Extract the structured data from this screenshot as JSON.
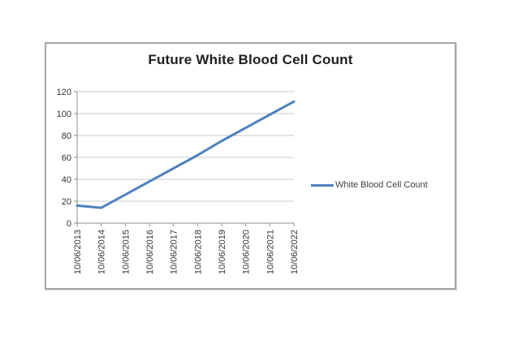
{
  "chart_data": {
    "type": "line",
    "title": "Future White Blood Cell Count",
    "categories": [
      "10/06/2013",
      "10/06/2014",
      "10/06/2015",
      "10/06/2016",
      "10/06/2017",
      "10/06/2018",
      "10/06/2019",
      "10/06/2020",
      "10/06/2021",
      "10/06/2022"
    ],
    "series": [
      {
        "name": "White Blood Cell Count",
        "values": [
          16,
          14,
          26,
          38,
          50,
          62,
          75,
          87,
          99,
          111
        ],
        "color": "#4F81BD"
      }
    ],
    "xlabel": "",
    "ylabel": "",
    "ylim": [
      0,
      120
    ],
    "ytick_labels": [
      "0",
      "20",
      "40",
      "60",
      "80",
      "100",
      "120"
    ],
    "grid": true,
    "legend_position": "right",
    "x_label_rotation": -90
  },
  "colors": {
    "line": "#4F81BD",
    "gridline": "#c9c9c9",
    "axis": "#8c8c8c",
    "tick": "#8c8c8c",
    "frame_border": "#a6a6a6",
    "title_text": "#1f1f1f",
    "axis_label_text": "#333333",
    "legend_text": "#3f3f3f",
    "background": "#ffffff"
  }
}
